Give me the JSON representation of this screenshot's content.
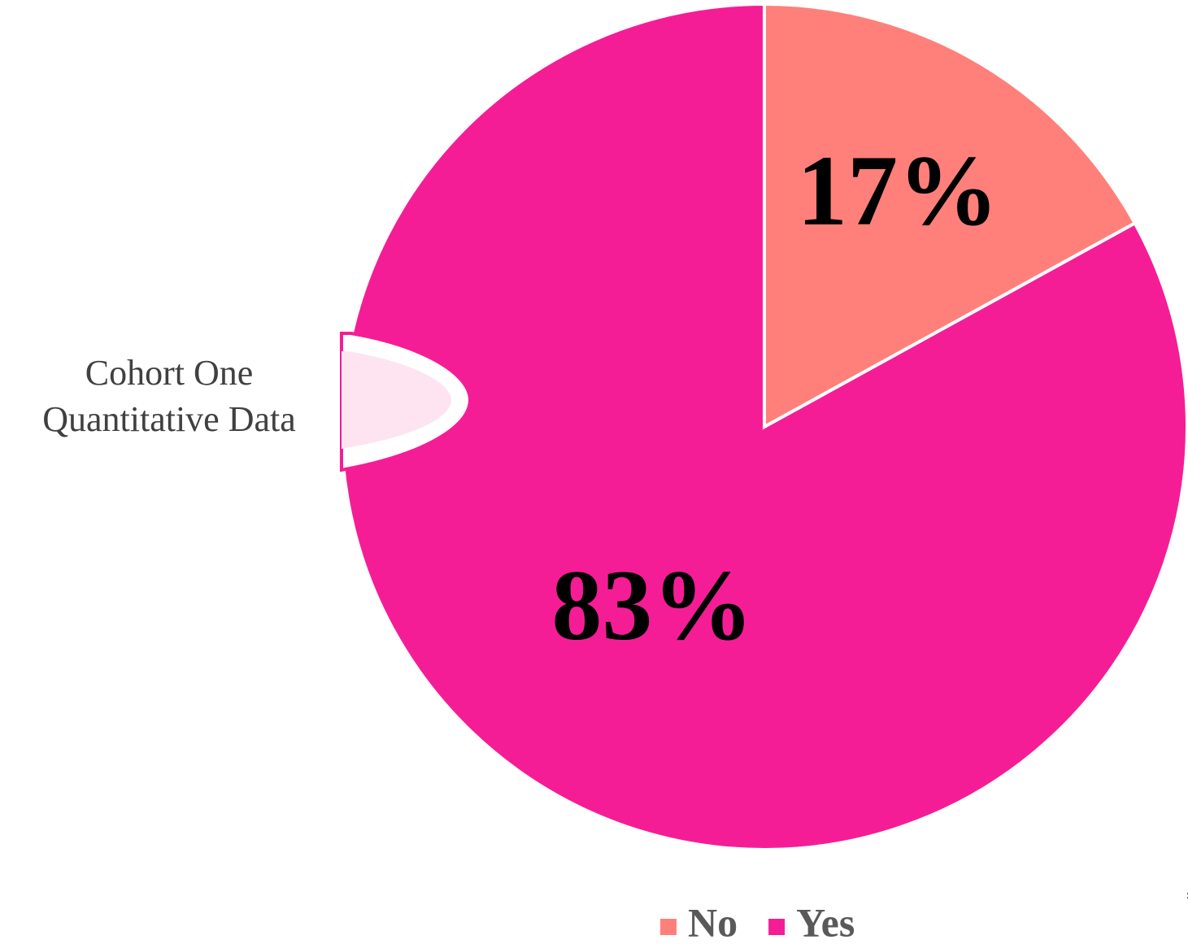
{
  "chart_data": {
    "type": "pie",
    "title": [
      "Cohort One",
      "Quantitative Data"
    ],
    "categories": [
      "No",
      "Yes"
    ],
    "values": [
      17,
      83
    ],
    "value_labels": [
      "17%",
      "83%"
    ],
    "colors": [
      "#ff807a",
      "#f51d96"
    ],
    "legend": "bottom",
    "footnote": "*"
  }
}
